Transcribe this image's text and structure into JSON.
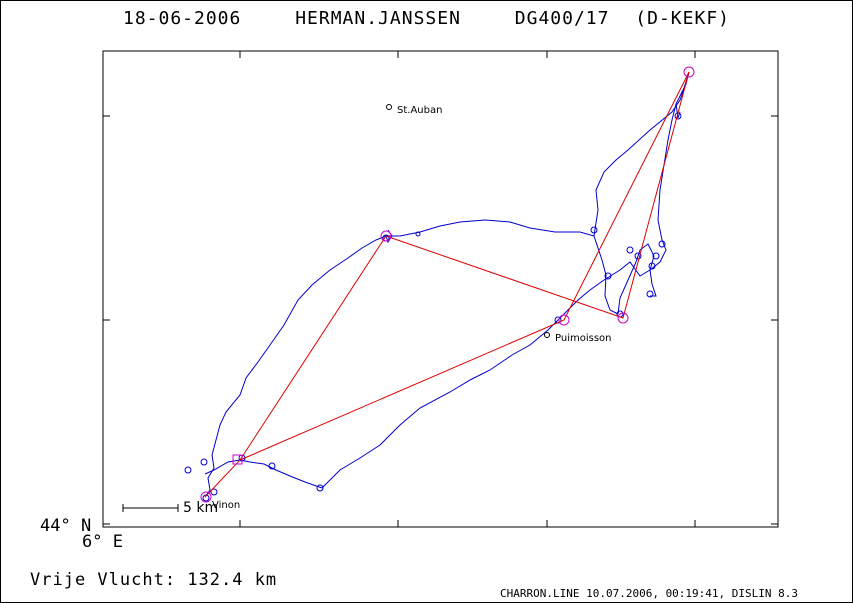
{
  "header": {
    "date": "18-06-2006",
    "pilot": "HERMAN.JANSSEN",
    "glider": "DG400/17 (D-KEKF)"
  },
  "axes": {
    "lat_label": "44° N",
    "lon_label": "6° E"
  },
  "places": [
    {
      "name": "St.Auban"
    },
    {
      "name": "Puimoisson"
    },
    {
      "name": "Vinon"
    }
  ],
  "scale": {
    "label": "5 km"
  },
  "summary": {
    "distance": "Vrije Vlucht:  132.4 km"
  },
  "footer": {
    "credit": "CHARRON.LINE 10.07.2006, 00:19:41, DISLIN 8.3"
  },
  "colors": {
    "track": "#0000cc",
    "task": "#dd0000",
    "turnpoint": "#cc00cc"
  }
}
